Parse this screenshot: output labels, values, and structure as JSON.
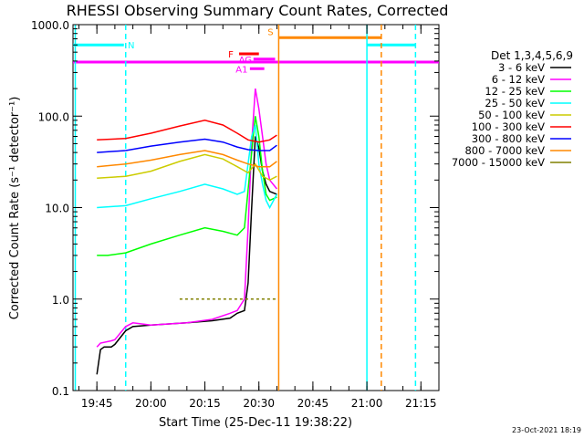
{
  "chart_data": {
    "type": "line",
    "title": "RHESSI Observing Summary Count Rates, Corrected",
    "xlabel": "Start Time (25-Dec-11 19:38:22)",
    "ylabel": "Corrected Count Rate (s⁻¹ detector⁻¹)",
    "y_scale": "log",
    "ylim": [
      0.1,
      1000
    ],
    "xlim": [
      "19:38:22",
      "21:20:00"
    ],
    "x_ticks": [
      "19:45",
      "20:00",
      "20:15",
      "20:30",
      "20:45",
      "21:00",
      "21:15"
    ],
    "y_ticks": [
      "0.1",
      "1.0",
      "10.0",
      "100.0",
      "1000.0"
    ],
    "legend_title": "Det 1,3,4,5,6,9",
    "legend_position": "right",
    "footer": "23-Oct-2021 18:19",
    "series": [
      {
        "name": "3 - 6 keV",
        "color": "#000000",
        "x": [
          "19:45",
          "19:46",
          "19:47",
          "19:49",
          "19:50",
          "19:53",
          "19:55",
          "20:00",
          "20:10",
          "20:17",
          "20:22",
          "20:24",
          "20:26",
          "20:27",
          "20:28",
          "20:29",
          "20:30",
          "20:31",
          "20:32",
          "20:33",
          "20:35"
        ],
        "y": [
          0.15,
          0.28,
          0.3,
          0.3,
          0.32,
          0.45,
          0.5,
          0.52,
          0.55,
          0.58,
          0.62,
          0.7,
          0.75,
          1.5,
          10,
          60,
          45,
          25,
          18,
          15,
          14
        ]
      },
      {
        "name": "6 - 12 keV",
        "color": "#ff00ff",
        "x": [
          "19:45",
          "19:46",
          "19:49",
          "19:50",
          "19:53",
          "19:55",
          "20:00",
          "20:10",
          "20:17",
          "20:22",
          "20:24",
          "20:26",
          "20:27",
          "20:28",
          "20:29",
          "20:30",
          "20:31",
          "20:32",
          "20:33",
          "20:35"
        ],
        "y": [
          0.3,
          0.33,
          0.35,
          0.36,
          0.5,
          0.55,
          0.52,
          0.55,
          0.6,
          0.7,
          0.75,
          1.0,
          6,
          50,
          200,
          120,
          60,
          30,
          20,
          16
        ]
      },
      {
        "name": "12 - 25 keV",
        "color": "#00ff00",
        "x": [
          "19:45",
          "19:48",
          "19:53",
          "20:00",
          "20:08",
          "20:15",
          "20:20",
          "20:24",
          "20:26",
          "20:28",
          "20:29",
          "20:30",
          "20:31",
          "20:32",
          "20:33",
          "20:35"
        ],
        "y": [
          3.0,
          3.0,
          3.2,
          4.0,
          5.0,
          6.0,
          5.5,
          5.0,
          6.0,
          40,
          100,
          60,
          25,
          14,
          12,
          13
        ]
      },
      {
        "name": "25 - 50 keV",
        "color": "#00ffff",
        "x": [
          "19:45",
          "19:53",
          "20:00",
          "20:08",
          "20:15",
          "20:20",
          "20:24",
          "20:26",
          "20:28",
          "20:29",
          "20:30",
          "20:31",
          "20:32",
          "20:33",
          "20:35"
        ],
        "y": [
          10,
          10.5,
          12.5,
          15,
          18,
          16,
          14,
          15,
          60,
          80,
          30,
          18,
          12,
          10,
          14
        ]
      },
      {
        "name": "50 - 100 keV",
        "color": "#cccc00",
        "x": [
          "19:45",
          "19:53",
          "20:00",
          "20:08",
          "20:15",
          "20:20",
          "20:24",
          "20:27",
          "20:29",
          "20:31",
          "20:33",
          "20:35"
        ],
        "y": [
          21,
          22,
          25,
          32,
          38,
          34,
          28,
          24,
          30,
          22,
          20,
          22
        ]
      },
      {
        "name": "100 - 300 keV",
        "color": "#ff0000",
        "x": [
          "19:45",
          "19:53",
          "20:00",
          "20:08",
          "20:15",
          "20:20",
          "20:24",
          "20:27",
          "20:30",
          "20:33",
          "20:35"
        ],
        "y": [
          55,
          57,
          65,
          78,
          90,
          80,
          65,
          55,
          52,
          55,
          62
        ]
      },
      {
        "name": "300 - 800 keV",
        "color": "#0000ff",
        "x": [
          "19:45",
          "19:53",
          "20:00",
          "20:08",
          "20:15",
          "20:20",
          "20:24",
          "20:27",
          "20:30",
          "20:33",
          "20:35"
        ],
        "y": [
          40,
          42,
          47,
          52,
          56,
          52,
          46,
          43,
          42,
          42,
          48
        ]
      },
      {
        "name": "800 - 7000 keV",
        "color": "#ff8800",
        "x": [
          "19:45",
          "19:53",
          "20:00",
          "20:08",
          "20:15",
          "20:20",
          "20:24",
          "20:27",
          "20:30",
          "20:33",
          "20:35"
        ],
        "y": [
          28,
          30,
          33,
          38,
          42,
          38,
          33,
          30,
          28,
          28,
          32
        ]
      },
      {
        "name": "7000 - 15000 keV",
        "color": "#808000",
        "x": [
          "20:08",
          "20:12",
          "20:15",
          "20:18",
          "20:22",
          "20:26",
          "20:30",
          "20:35"
        ],
        "y": [
          1.0,
          1.0,
          1.0,
          1.0,
          1.0,
          1.0,
          1.0,
          1.0
        ]
      }
    ],
    "flags": [
      {
        "label": "N",
        "color": "#00ffff",
        "segments": [
          [
            "19:38:22",
            "19:52:30"
          ],
          [
            "21:00:00",
            "21:13:30"
          ]
        ],
        "level": 600
      },
      {
        "label": "S",
        "color": "#ff8800",
        "segments": [
          [
            "20:35:30",
            "21:04:00"
          ]
        ],
        "level": 720
      },
      {
        "label": "F",
        "color": "#ff0000",
        "segments": [
          [
            "20:24:30",
            "20:30:00"
          ]
        ],
        "level": 480
      },
      {
        "label": "AG",
        "color": "#ff00ff",
        "segments": [
          [
            "20:28:30",
            "20:34:30"
          ]
        ],
        "level": 420
      },
      {
        "label": "A1",
        "color": "#ff00ff",
        "segments": [
          [
            "20:27:30",
            "20:31:30"
          ]
        ],
        "level": 330
      },
      {
        "label": "",
        "color": "#ff00ff",
        "segments": [
          [
            "19:38:22",
            "21:20:00"
          ]
        ],
        "level": 390
      }
    ],
    "vlines": [
      {
        "time": "19:39:00",
        "color": "#00ffff",
        "style": "solid"
      },
      {
        "time": "19:53:00",
        "color": "#00ffff",
        "style": "dashed"
      },
      {
        "time": "20:35:30",
        "color": "#ff8800",
        "style": "solid"
      },
      {
        "time": "21:00:00",
        "color": "#00ffff",
        "style": "solid"
      },
      {
        "time": "21:04:00",
        "color": "#ff8800",
        "style": "dashed"
      },
      {
        "time": "21:13:30",
        "color": "#00ffff",
        "style": "dashed"
      }
    ]
  }
}
